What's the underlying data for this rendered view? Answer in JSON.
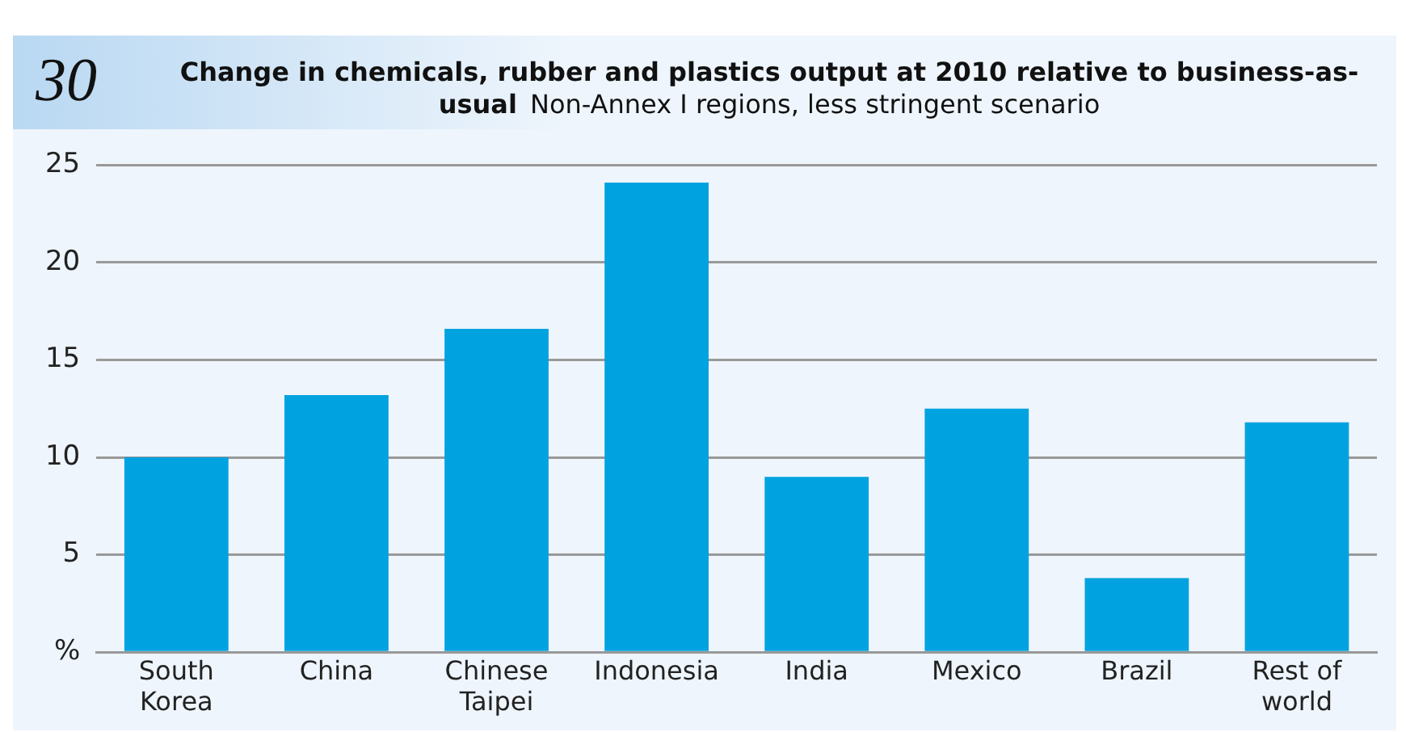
{
  "chart_data": {
    "type": "bar",
    "title": "Change in chemicals, rubber and plastics output at 2010 relative to business-as-usual",
    "subtitle": "Non-Annex I regions, less stringent scenario",
    "annotations": [
      "30"
    ],
    "categories": [
      "South Korea",
      "China",
      "Chinese Taipei",
      "Indonesia",
      "India",
      "Mexico",
      "Brazil",
      "Rest of world"
    ],
    "values": [
      10,
      13.2,
      16.6,
      24.1,
      9.0,
      12.5,
      3.8,
      11.8
    ],
    "color": "#00a3e0",
    "ylim": [
      0,
      25
    ],
    "yticks": [
      {
        "value": 0,
        "label": "%"
      },
      5,
      10,
      15,
      20,
      25
    ],
    "grid": "y",
    "legend": false
  }
}
